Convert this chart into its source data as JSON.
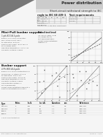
{
  "title_right": "Power distribution",
  "subtitle_right": "Short-circuit withstand strength to IEC",
  "bg_color": "#f5f5f5",
  "header_bar_color": "#d0d0d0",
  "dark_triangle_color": "#888888",
  "section1_title": "regle to IEC 60 439-1",
  "section2_title": "Mini-Pull busbar support",
  "section2_subtitle": "1 ph 400 A 3-pole",
  "section3_title": "Busbar support",
  "section3_subtitle": "4 Ph 800 A 4-pole",
  "grid_color": "#bbbbbb",
  "text_color": "#222222",
  "light_text": "#555555",
  "footer_left": "Rittal GmbH & Co. KG  www.rittal.com",
  "footer_right": "SHK09-11 · 11/11"
}
